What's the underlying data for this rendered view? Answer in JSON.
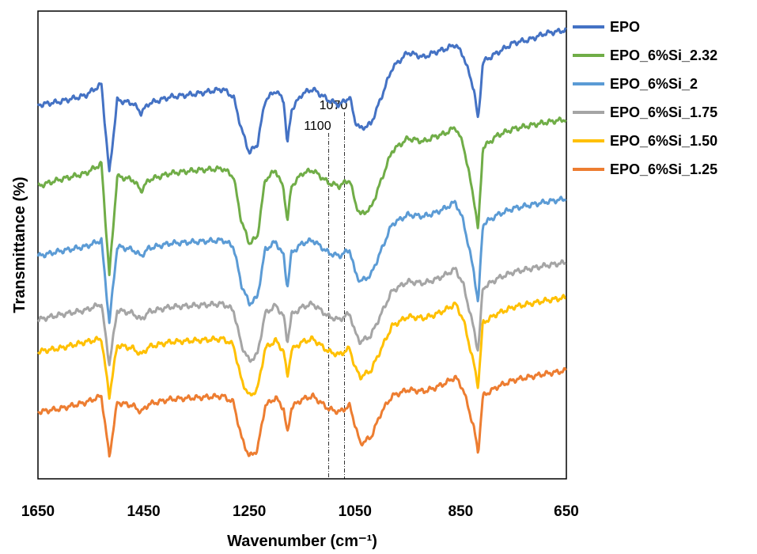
{
  "chart_data": {
    "type": "line",
    "title": "",
    "xlabel": "Wavenumber (cm⁻¹)",
    "ylabel": "Transmittance (%)",
    "xlim": [
      1650,
      650
    ],
    "x_reversed": true,
    "xticks": [
      1650,
      1450,
      1250,
      1050,
      850,
      650
    ],
    "y_tick_labels": false,
    "grid": false,
    "legend_position": "right",
    "annotations": [
      {
        "label": "1100",
        "x": 1100
      },
      {
        "label": "1070",
        "x": 1070
      }
    ],
    "series": [
      {
        "name": "EPO",
        "color": "#4472C4",
        "offset": 88,
        "points": [
          [
            1650,
            85
          ],
          [
            1610,
            87
          ],
          [
            1560,
            91
          ],
          [
            1530,
            98
          ],
          [
            1515,
            42
          ],
          [
            1500,
            88
          ],
          [
            1470,
            86
          ],
          [
            1455,
            80
          ],
          [
            1440,
            86
          ],
          [
            1400,
            90
          ],
          [
            1350,
            92
          ],
          [
            1300,
            95
          ],
          [
            1280,
            90
          ],
          [
            1265,
            70
          ],
          [
            1250,
            55
          ],
          [
            1235,
            60
          ],
          [
            1220,
            88
          ],
          [
            1200,
            94
          ],
          [
            1185,
            88
          ],
          [
            1178,
            60
          ],
          [
            1170,
            82
          ],
          [
            1150,
            92
          ],
          [
            1130,
            95
          ],
          [
            1100,
            88
          ],
          [
            1080,
            85
          ],
          [
            1060,
            90
          ],
          [
            1050,
            75
          ],
          [
            1040,
            70
          ],
          [
            1020,
            73
          ],
          [
            1000,
            90
          ],
          [
            980,
            108
          ],
          [
            950,
            118
          ],
          [
            920,
            115
          ],
          [
            900,
            118
          ],
          [
            880,
            120
          ],
          [
            860,
            123
          ],
          [
            845,
            116
          ],
          [
            825,
            95
          ],
          [
            817,
            75
          ],
          [
            808,
            112
          ],
          [
            780,
            118
          ],
          [
            750,
            124
          ],
          [
            720,
            126
          ],
          [
            690,
            130
          ],
          [
            650,
            132
          ]
        ]
      },
      {
        "name": "EPO_6%Si_2.32",
        "color": "#70AD47",
        "offset": 64,
        "points": [
          [
            1650,
            58
          ],
          [
            1610,
            62
          ],
          [
            1560,
            66
          ],
          [
            1530,
            72
          ],
          [
            1515,
            2
          ],
          [
            1500,
            64
          ],
          [
            1470,
            62
          ],
          [
            1455,
            55
          ],
          [
            1440,
            62
          ],
          [
            1400,
            66
          ],
          [
            1350,
            68
          ],
          [
            1300,
            69
          ],
          [
            1280,
            64
          ],
          [
            1265,
            36
          ],
          [
            1250,
            22
          ],
          [
            1235,
            26
          ],
          [
            1220,
            62
          ],
          [
            1200,
            68
          ],
          [
            1185,
            56
          ],
          [
            1178,
            36
          ],
          [
            1170,
            58
          ],
          [
            1150,
            66
          ],
          [
            1130,
            68
          ],
          [
            1100,
            60
          ],
          [
            1080,
            58
          ],
          [
            1060,
            62
          ],
          [
            1050,
            48
          ],
          [
            1040,
            40
          ],
          [
            1020,
            44
          ],
          [
            1000,
            62
          ],
          [
            980,
            80
          ],
          [
            950,
            88
          ],
          [
            920,
            86
          ],
          [
            900,
            89
          ],
          [
            880,
            91
          ],
          [
            860,
            95
          ],
          [
            845,
            84
          ],
          [
            825,
            50
          ],
          [
            817,
            30
          ],
          [
            808,
            82
          ],
          [
            780,
            90
          ],
          [
            750,
            94
          ],
          [
            720,
            96
          ],
          [
            690,
            98
          ],
          [
            650,
            100
          ]
        ]
      },
      {
        "name": "EPO_6%Si_2",
        "color": "#5B9BD5",
        "offset": 38,
        "points": [
          [
            1650,
            40
          ],
          [
            1610,
            43
          ],
          [
            1560,
            46
          ],
          [
            1530,
            50
          ],
          [
            1515,
            -2
          ],
          [
            1500,
            46
          ],
          [
            1470,
            44
          ],
          [
            1455,
            40
          ],
          [
            1440,
            45
          ],
          [
            1400,
            48
          ],
          [
            1350,
            49
          ],
          [
            1300,
            50
          ],
          [
            1280,
            46
          ],
          [
            1265,
            22
          ],
          [
            1250,
            10
          ],
          [
            1235,
            14
          ],
          [
            1220,
            44
          ],
          [
            1200,
            49
          ],
          [
            1185,
            40
          ],
          [
            1178,
            20
          ],
          [
            1170,
            42
          ],
          [
            1150,
            48
          ],
          [
            1130,
            50
          ],
          [
            1100,
            42
          ],
          [
            1080,
            40
          ],
          [
            1060,
            44
          ],
          [
            1050,
            30
          ],
          [
            1040,
            24
          ],
          [
            1020,
            28
          ],
          [
            1000,
            44
          ],
          [
            980,
            60
          ],
          [
            950,
            66
          ],
          [
            920,
            65
          ],
          [
            900,
            67
          ],
          [
            880,
            70
          ],
          [
            860,
            74
          ],
          [
            845,
            62
          ],
          [
            825,
            30
          ],
          [
            817,
            10
          ],
          [
            808,
            60
          ],
          [
            780,
            66
          ],
          [
            750,
            70
          ],
          [
            720,
            72
          ],
          [
            690,
            74
          ],
          [
            650,
            76
          ]
        ]
      },
      {
        "name": "EPO_6%Si_1.75",
        "color": "#A5A5A5",
        "offset": 10,
        "points": [
          [
            1650,
            28
          ],
          [
            1610,
            31
          ],
          [
            1560,
            34
          ],
          [
            1530,
            38
          ],
          [
            1515,
            0
          ],
          [
            1500,
            34
          ],
          [
            1470,
            32
          ],
          [
            1455,
            28
          ],
          [
            1440,
            33
          ],
          [
            1400,
            36
          ],
          [
            1350,
            37
          ],
          [
            1300,
            38
          ],
          [
            1280,
            34
          ],
          [
            1265,
            12
          ],
          [
            1250,
            2
          ],
          [
            1235,
            6
          ],
          [
            1220,
            32
          ],
          [
            1200,
            37
          ],
          [
            1185,
            30
          ],
          [
            1178,
            14
          ],
          [
            1170,
            31
          ],
          [
            1150,
            36
          ],
          [
            1130,
            38
          ],
          [
            1100,
            30
          ],
          [
            1080,
            28
          ],
          [
            1060,
            32
          ],
          [
            1050,
            20
          ],
          [
            1040,
            14
          ],
          [
            1020,
            18
          ],
          [
            1000,
            32
          ],
          [
            980,
            46
          ],
          [
            950,
            52
          ],
          [
            920,
            51
          ],
          [
            900,
            53
          ],
          [
            880,
            56
          ],
          [
            860,
            60
          ],
          [
            845,
            50
          ],
          [
            825,
            22
          ],
          [
            817,
            8
          ],
          [
            808,
            48
          ],
          [
            780,
            54
          ],
          [
            750,
            58
          ],
          [
            720,
            60
          ],
          [
            690,
            62
          ],
          [
            650,
            64
          ]
        ]
      },
      {
        "name": "EPO_6%Si_1.50",
        "color": "#FFC000",
        "offset": -22,
        "points": [
          [
            1650,
            40
          ],
          [
            1610,
            42
          ],
          [
            1560,
            46
          ],
          [
            1530,
            48
          ],
          [
            1515,
            12
          ],
          [
            1500,
            44
          ],
          [
            1470,
            42
          ],
          [
            1455,
            38
          ],
          [
            1440,
            43
          ],
          [
            1400,
            46
          ],
          [
            1350,
            47
          ],
          [
            1300,
            48
          ],
          [
            1280,
            44
          ],
          [
            1265,
            22
          ],
          [
            1250,
            12
          ],
          [
            1235,
            16
          ],
          [
            1220,
            42
          ],
          [
            1200,
            47
          ],
          [
            1185,
            40
          ],
          [
            1178,
            24
          ],
          [
            1170,
            41
          ],
          [
            1150,
            46
          ],
          [
            1130,
            48
          ],
          [
            1100,
            40
          ],
          [
            1080,
            38
          ],
          [
            1060,
            42
          ],
          [
            1050,
            30
          ],
          [
            1040,
            24
          ],
          [
            1020,
            28
          ],
          [
            1000,
            42
          ],
          [
            980,
            56
          ],
          [
            950,
            62
          ],
          [
            920,
            61
          ],
          [
            900,
            63
          ],
          [
            880,
            66
          ],
          [
            860,
            70
          ],
          [
            845,
            60
          ],
          [
            825,
            32
          ],
          [
            817,
            18
          ],
          [
            808,
            58
          ],
          [
            780,
            64
          ],
          [
            750,
            68
          ],
          [
            720,
            70
          ],
          [
            690,
            72
          ],
          [
            650,
            74
          ]
        ]
      },
      {
        "name": "EPO_6%Si_1.25",
        "color": "#ED7D31",
        "offset": -50,
        "points": [
          [
            1650,
            30
          ],
          [
            1610,
            32
          ],
          [
            1560,
            36
          ],
          [
            1530,
            40
          ],
          [
            1515,
            2
          ],
          [
            1500,
            36
          ],
          [
            1470,
            34
          ],
          [
            1455,
            30
          ],
          [
            1440,
            35
          ],
          [
            1400,
            38
          ],
          [
            1350,
            39
          ],
          [
            1300,
            40
          ],
          [
            1280,
            36
          ],
          [
            1265,
            14
          ],
          [
            1250,
            2
          ],
          [
            1235,
            6
          ],
          [
            1220,
            34
          ],
          [
            1200,
            39
          ],
          [
            1185,
            32
          ],
          [
            1178,
            16
          ],
          [
            1170,
            33
          ],
          [
            1150,
            38
          ],
          [
            1130,
            40
          ],
          [
            1100,
            32
          ],
          [
            1080,
            30
          ],
          [
            1060,
            34
          ],
          [
            1050,
            22
          ],
          [
            1040,
            10
          ],
          [
            1020,
            14
          ],
          [
            1000,
            30
          ],
          [
            980,
            40
          ],
          [
            950,
            44
          ],
          [
            920,
            43
          ],
          [
            900,
            45
          ],
          [
            880,
            48
          ],
          [
            860,
            52
          ],
          [
            845,
            44
          ],
          [
            825,
            20
          ],
          [
            817,
            4
          ],
          [
            808,
            40
          ],
          [
            780,
            46
          ],
          [
            750,
            50
          ],
          [
            720,
            52
          ],
          [
            690,
            54
          ],
          [
            650,
            56
          ]
        ]
      }
    ]
  }
}
